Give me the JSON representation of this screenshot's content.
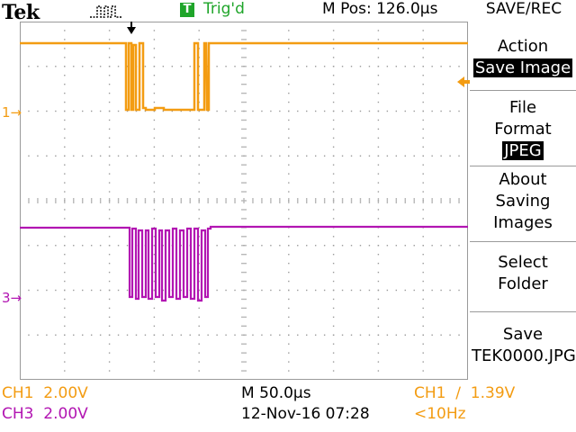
{
  "header": {
    "brand": "Tek",
    "acquisition_icon": "single-pulse-icon",
    "trigger_badge": "T",
    "trigger_status": "Trig'd",
    "m_pos": "M Pos: 126.0µs",
    "menu_title": "SAVE/REC"
  },
  "colors": {
    "ch1": "#f39c12",
    "ch3": "#b215b2",
    "trigger": "#1fa52a",
    "grid": "#9a9a9a"
  },
  "markers": {
    "ch1_ground": "1",
    "ch3_ground": "3"
  },
  "menu": {
    "action_label": "Action",
    "action_value": "Save Image",
    "file_format_label_1": "File",
    "file_format_label_2": "Format",
    "file_format_value": "JPEG",
    "about_1": "About",
    "about_2": "Saving",
    "about_3": "Images",
    "select_1": "Select",
    "select_2": "Folder",
    "save_1": "Save",
    "save_2": "TEK0000.JPG"
  },
  "readouts": {
    "ch1_scale": "CH1  2.00V",
    "ch3_scale": "CH3  2.00V",
    "timebase": "M 50.0µs",
    "datetime": "12-Nov-16 07:28",
    "trigger_setting": "CH1  ∕  1.39V",
    "frequency": "<10Hz"
  }
}
